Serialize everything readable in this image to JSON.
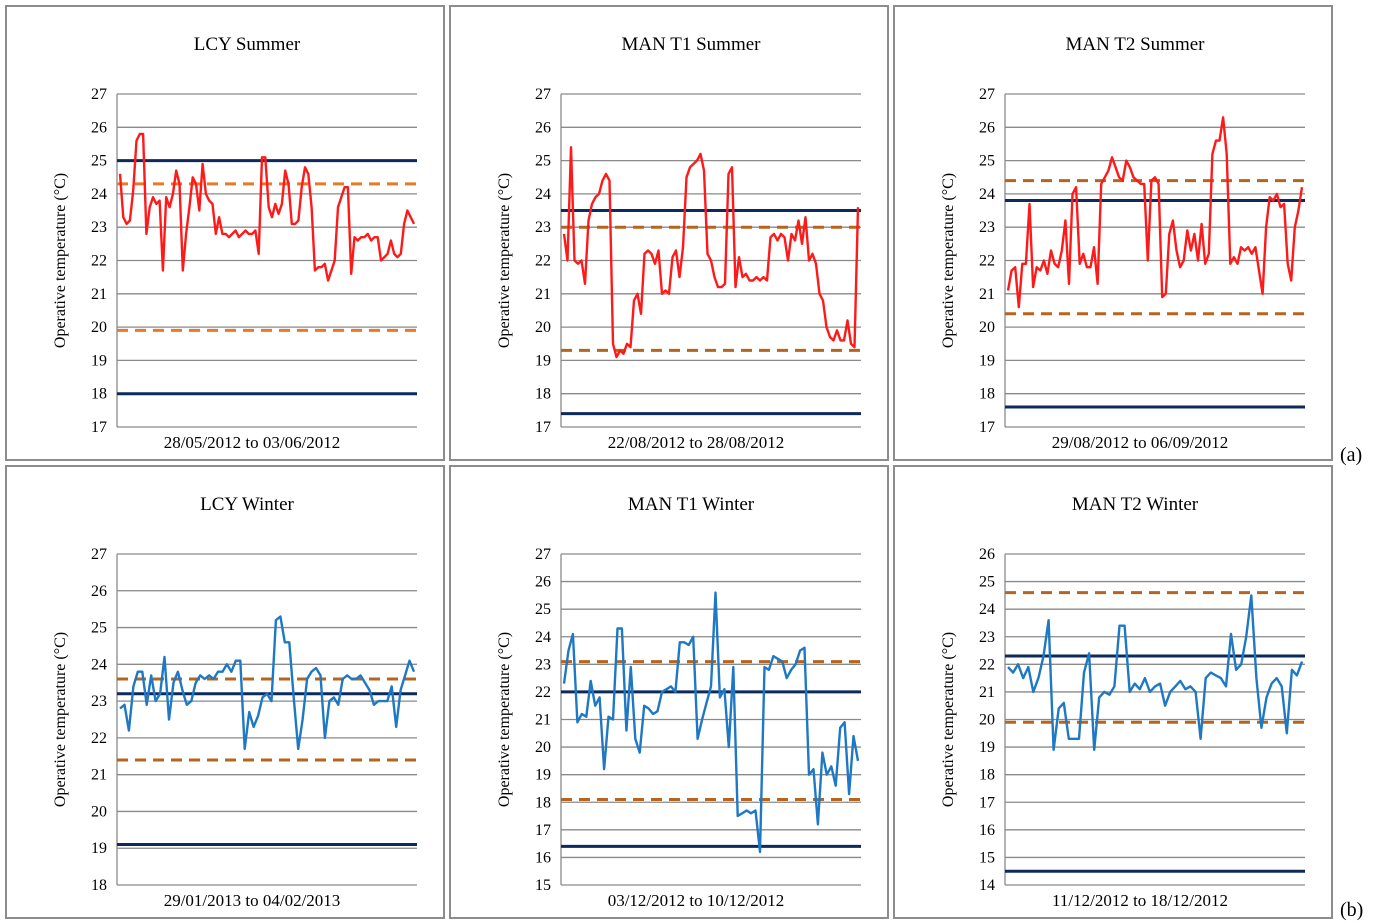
{
  "row_labels": [
    "(a)",
    "(b)"
  ],
  "chart_data": [
    {
      "type": "line",
      "title": "LCY Summer",
      "ylabel": "Operative temperature  (°C)",
      "xlabel": "28/05/2012  to  03/06/2012",
      "ylim": [
        17,
        27
      ],
      "yticks": [
        17,
        18,
        19,
        20,
        21,
        22,
        23,
        24,
        25,
        26,
        27
      ],
      "grid": true,
      "limits": [
        {
          "value": 25.0,
          "style": "solid",
          "color": "#0e2a5c"
        },
        {
          "value": 18.0,
          "style": "solid",
          "color": "#0e2a5c"
        },
        {
          "value": 24.3,
          "style": "dashed",
          "color": "#e8792a"
        },
        {
          "value": 19.9,
          "style": "dashed",
          "color": "#e8792a"
        }
      ],
      "series": [
        {
          "color": "#ff1a1a",
          "values": [
            24.6,
            23.3,
            23.1,
            23.2,
            24.1,
            25.6,
            25.8,
            25.8,
            22.8,
            23.6,
            23.9,
            23.7,
            23.8,
            21.7,
            23.9,
            23.6,
            24.0,
            24.7,
            24.3,
            21.7,
            22.8,
            23.6,
            24.5,
            24.3,
            23.5,
            24.9,
            24.0,
            23.8,
            23.7,
            22.8,
            23.3,
            22.8,
            22.8,
            22.7,
            22.8,
            22.9,
            22.7,
            22.8,
            22.9,
            22.8,
            22.8,
            22.9,
            22.2,
            25.1,
            25.1,
            23.6,
            23.3,
            23.7,
            23.4,
            23.7,
            24.7,
            24.3,
            23.1,
            23.1,
            23.2,
            24.2,
            24.8,
            24.6,
            23.6,
            21.7,
            21.8,
            21.8,
            21.9,
            21.4,
            21.7,
            22.0,
            23.6,
            23.9,
            24.2,
            24.2,
            21.6,
            22.7,
            22.6,
            22.7,
            22.7,
            22.8,
            22.6,
            22.7,
            22.7,
            22.0,
            22.1,
            22.2,
            22.6,
            22.2,
            22.1,
            22.2,
            23.1,
            23.5,
            23.3,
            23.1
          ]
        }
      ]
    },
    {
      "type": "line",
      "title": "MAN T1 Summer",
      "ylabel": "Operative temperature (°C)",
      "xlabel": "22/08/2012  to  28/08/2012",
      "ylim": [
        17,
        27
      ],
      "yticks": [
        17,
        18,
        19,
        20,
        21,
        22,
        23,
        24,
        25,
        26,
        27
      ],
      "grid": true,
      "limits": [
        {
          "value": 23.5,
          "style": "solid",
          "color": "#0e2a5c"
        },
        {
          "value": 17.4,
          "style": "solid",
          "color": "#0e2a5c"
        },
        {
          "value": 23.0,
          "style": "dashed",
          "color": "#b5651d"
        },
        {
          "value": 19.3,
          "style": "dashed",
          "color": "#b5651d"
        }
      ],
      "series": [
        {
          "color": "#ff1a1a",
          "values": [
            22.8,
            22.0,
            25.4,
            22.0,
            21.9,
            22.0,
            21.3,
            23.2,
            23.7,
            23.9,
            24.0,
            24.4,
            24.6,
            24.4,
            19.5,
            19.1,
            19.3,
            19.2,
            19.5,
            19.4,
            20.8,
            21.0,
            20.4,
            22.2,
            22.3,
            22.2,
            21.9,
            22.3,
            21.0,
            21.1,
            21.0,
            22.1,
            22.3,
            21.5,
            22.4,
            24.5,
            24.8,
            24.9,
            25.0,
            25.2,
            24.7,
            22.2,
            22.0,
            21.5,
            21.2,
            21.2,
            21.3,
            24.6,
            24.8,
            21.2,
            22.1,
            21.5,
            21.6,
            21.4,
            21.4,
            21.5,
            21.4,
            21.5,
            21.4,
            22.7,
            22.8,
            22.6,
            22.8,
            22.7,
            22.0,
            22.8,
            22.6,
            23.2,
            22.5,
            23.3,
            22.0,
            22.2,
            21.9,
            21.0,
            20.8,
            20.0,
            19.7,
            19.6,
            19.9,
            19.6,
            19.6,
            20.2,
            19.5,
            19.4,
            23.6
          ]
        }
      ]
    },
    {
      "type": "line",
      "title": "MAN T2 Summer",
      "ylabel": "Operative temperature (°C)",
      "xlabel": "29/08/2012  to  06/09/2012",
      "ylim": [
        17,
        27
      ],
      "yticks": [
        17,
        18,
        19,
        20,
        21,
        22,
        23,
        24,
        25,
        26,
        27
      ],
      "grid": true,
      "limits": [
        {
          "value": 23.8,
          "style": "solid",
          "color": "#0e2a5c"
        },
        {
          "value": 17.6,
          "style": "solid",
          "color": "#0e2a5c"
        },
        {
          "value": 24.4,
          "style": "dashed",
          "color": "#b5651d"
        },
        {
          "value": 20.4,
          "style": "dashed",
          "color": "#b5651d"
        }
      ],
      "series": [
        {
          "color": "#ff1a1a",
          "values": [
            21.1,
            21.7,
            21.8,
            20.6,
            21.9,
            21.9,
            23.7,
            21.2,
            21.8,
            21.7,
            22.0,
            21.6,
            22.3,
            21.9,
            21.8,
            22.3,
            23.2,
            21.3,
            24.0,
            24.2,
            21.9,
            22.2,
            21.8,
            21.8,
            22.4,
            21.3,
            24.3,
            24.5,
            24.7,
            25.1,
            24.8,
            24.5,
            24.4,
            25.0,
            24.8,
            24.5,
            24.4,
            24.3,
            24.3,
            22.0,
            24.4,
            24.5,
            24.3,
            20.9,
            21.0,
            22.8,
            23.2,
            22.3,
            21.8,
            22.0,
            22.9,
            22.3,
            22.8,
            22.0,
            23.1,
            21.9,
            22.2,
            25.2,
            25.6,
            25.6,
            26.3,
            25.2,
            21.9,
            22.1,
            21.9,
            22.4,
            22.3,
            22.4,
            22.2,
            22.4,
            21.7,
            21.0,
            23.0,
            23.9,
            23.8,
            24.0,
            23.6,
            23.7,
            21.9,
            21.4,
            23.0,
            23.5,
            24.2
          ]
        }
      ]
    },
    {
      "type": "line",
      "title": "LCY Winter",
      "ylabel": "Operative temperature (°C)",
      "xlabel": "29/01/2013  to  04/02/2013",
      "ylim": [
        18,
        27
      ],
      "yticks": [
        18,
        19,
        20,
        21,
        22,
        23,
        24,
        25,
        26,
        27
      ],
      "grid": true,
      "limits": [
        {
          "value": 23.2,
          "style": "solid",
          "color": "#0e2a5c"
        },
        {
          "value": 19.1,
          "style": "solid",
          "color": "#0e2a5c"
        },
        {
          "value": 23.6,
          "style": "dashed",
          "color": "#b5651d"
        },
        {
          "value": 21.4,
          "style": "dashed",
          "color": "#b5651d"
        }
      ],
      "series": [
        {
          "color": "#1f78c4",
          "values": [
            22.8,
            22.9,
            22.2,
            23.4,
            23.8,
            23.8,
            22.9,
            23.7,
            23.0,
            23.2,
            24.2,
            22.5,
            23.5,
            23.8,
            23.3,
            22.9,
            23.0,
            23.5,
            23.7,
            23.6,
            23.7,
            23.6,
            23.8,
            23.8,
            24.0,
            23.8,
            24.1,
            24.1,
            21.7,
            22.7,
            22.3,
            22.6,
            23.1,
            23.2,
            23.0,
            25.2,
            25.3,
            24.6,
            24.6,
            23.1,
            21.7,
            22.5,
            23.6,
            23.8,
            23.9,
            23.7,
            22.0,
            23.0,
            23.1,
            22.9,
            23.6,
            23.7,
            23.6,
            23.6,
            23.7,
            23.5,
            23.3,
            22.9,
            23.0,
            23.0,
            23.0,
            23.4,
            22.3,
            23.3,
            23.7,
            24.1,
            23.8
          ]
        }
      ]
    },
    {
      "type": "line",
      "title": "MAN T1 Winter",
      "ylabel": "Operative temperature (°C)",
      "xlabel": "03/12/2012  to  10/12/2012",
      "ylim": [
        15,
        27
      ],
      "yticks": [
        15,
        16,
        17,
        18,
        19,
        20,
        21,
        22,
        23,
        24,
        25,
        26,
        27
      ],
      "grid": true,
      "limits": [
        {
          "value": 22.0,
          "style": "solid",
          "color": "#0e2a5c"
        },
        {
          "value": 16.4,
          "style": "solid",
          "color": "#0e2a5c"
        },
        {
          "value": 23.1,
          "style": "dashed",
          "color": "#b5651d"
        },
        {
          "value": 18.1,
          "style": "dashed",
          "color": "#b5651d"
        }
      ],
      "series": [
        {
          "color": "#1f78c4",
          "values": [
            22.3,
            23.5,
            24.1,
            20.9,
            21.2,
            21.1,
            22.4,
            21.5,
            21.8,
            19.2,
            21.1,
            21.0,
            24.3,
            24.3,
            20.6,
            22.9,
            20.3,
            19.8,
            21.5,
            21.4,
            21.2,
            21.3,
            22.0,
            22.1,
            22.2,
            22.0,
            23.8,
            23.8,
            23.7,
            24.0,
            20.3,
            21.0,
            21.6,
            22.2,
            25.6,
            21.8,
            22.1,
            20.0,
            22.9,
            17.5,
            17.6,
            17.7,
            17.6,
            17.7,
            16.2,
            22.9,
            22.8,
            23.3,
            23.2,
            23.1,
            22.5,
            22.8,
            23.0,
            23.5,
            23.6,
            19.0,
            19.2,
            17.2,
            19.8,
            19.0,
            19.3,
            18.6,
            20.7,
            20.9,
            18.3,
            20.4,
            19.5
          ]
        }
      ]
    },
    {
      "type": "line",
      "title": "MAN T2 Winter",
      "ylabel": "Operative temperature (°C)",
      "xlabel": "11/12/2012  to  18/12/2012",
      "ylim": [
        14,
        26
      ],
      "yticks": [
        14,
        15,
        16,
        17,
        18,
        19,
        20,
        21,
        22,
        23,
        24,
        25,
        26
      ],
      "grid": true,
      "limits": [
        {
          "value": 22.3,
          "style": "solid",
          "color": "#0e2a5c"
        },
        {
          "value": 14.5,
          "style": "solid",
          "color": "#0e2a5c"
        },
        {
          "value": 24.6,
          "style": "dashed",
          "color": "#b5651d"
        },
        {
          "value": 19.9,
          "style": "dashed",
          "color": "#b5651d"
        }
      ],
      "series": [
        {
          "color": "#1f78c4",
          "values": [
            21.9,
            21.7,
            22.0,
            21.5,
            21.9,
            21.0,
            21.5,
            22.3,
            23.6,
            18.9,
            20.4,
            20.6,
            19.3,
            19.3,
            19.3,
            21.7,
            22.4,
            18.9,
            20.8,
            21.0,
            20.9,
            21.2,
            23.4,
            23.4,
            21.0,
            21.3,
            21.1,
            21.5,
            21.0,
            21.2,
            21.3,
            20.5,
            21.0,
            21.2,
            21.4,
            21.1,
            21.2,
            21.0,
            19.3,
            21.5,
            21.7,
            21.6,
            21.5,
            21.2,
            23.1,
            21.8,
            22.0,
            23.0,
            24.5,
            21.5,
            19.7,
            20.8,
            21.3,
            21.5,
            21.2,
            19.5,
            21.8,
            21.6,
            22.1
          ]
        }
      ]
    }
  ]
}
